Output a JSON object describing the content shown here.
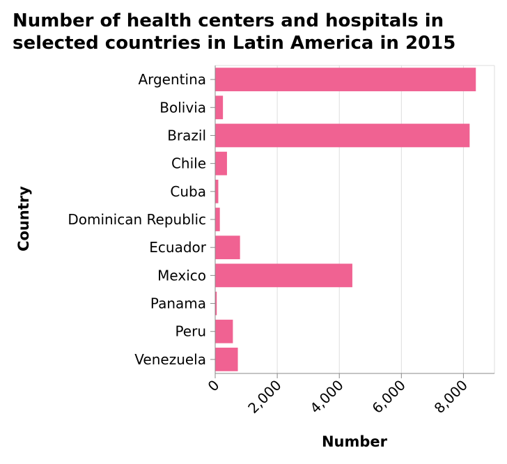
{
  "chart_data": {
    "type": "bar",
    "orientation": "horizontal",
    "title_lines": [
      "Number of health centers and hospitals in",
      "selected countries in Latin America in 2015"
    ],
    "xlabel": "Number",
    "ylabel": "Country",
    "categories": [
      "Argentina",
      "Bolivia",
      "Brazil",
      "Chile",
      "Cuba",
      "Dominican Republic",
      "Ecuador",
      "Mexico",
      "Panama",
      "Peru",
      "Venezuela"
    ],
    "values": [
      8400,
      250,
      8200,
      380,
      100,
      150,
      800,
      4420,
      50,
      570,
      730
    ],
    "xlim": [
      0,
      9000
    ],
    "xticks": [
      0,
      2000,
      4000,
      6000,
      8000
    ],
    "xtick_labels": [
      "0",
      "2,000",
      "4,000",
      "6,000",
      "8,000"
    ],
    "grid": true,
    "bar_color": "#f06292",
    "grid_color": "#dddddd",
    "axis_color": "#888888"
  }
}
